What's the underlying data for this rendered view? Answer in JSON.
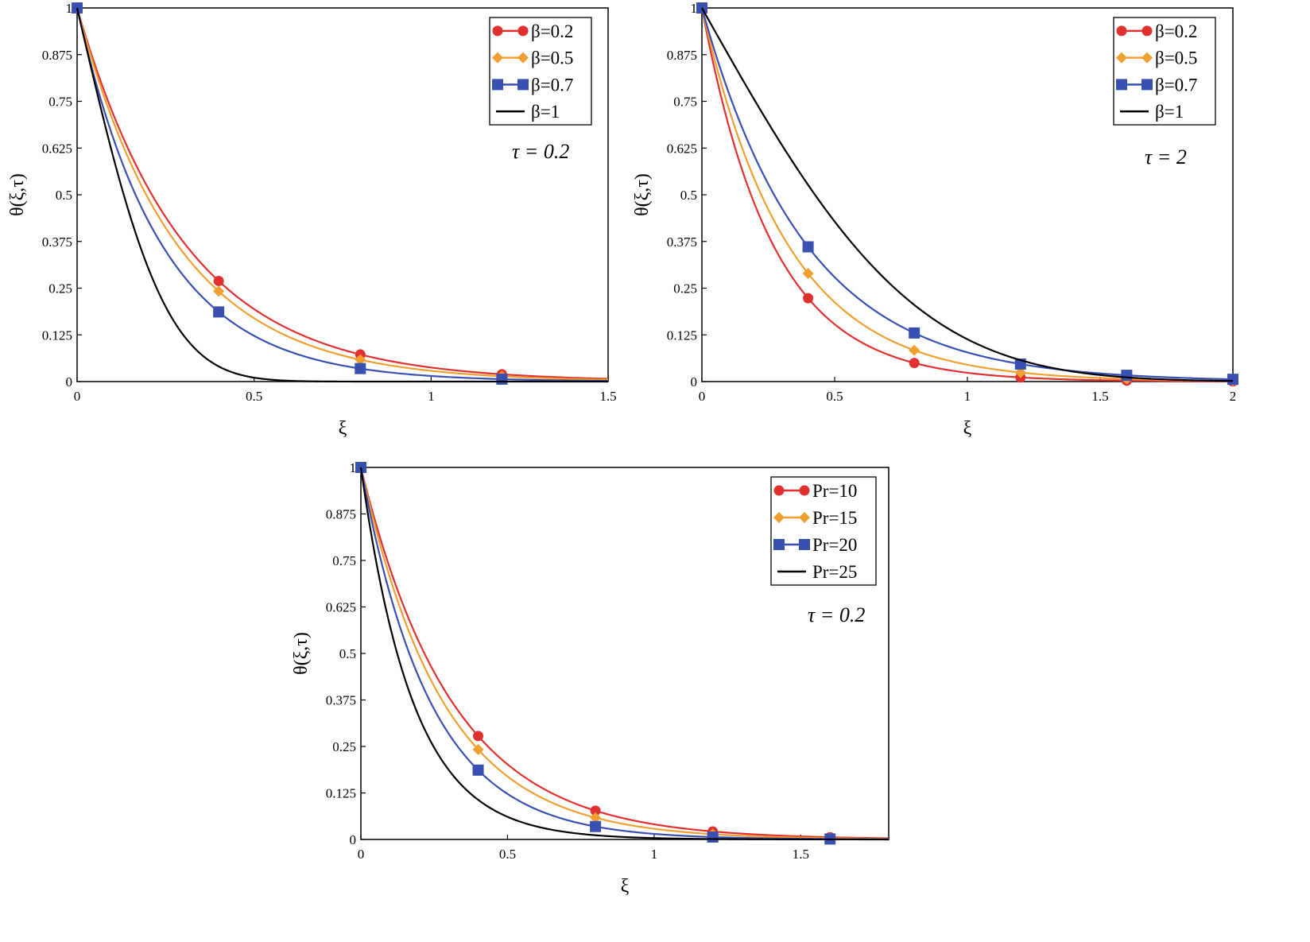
{
  "colors": {
    "red": "#e03030",
    "orange": "#f0a030",
    "blue": "#3a50b0",
    "black": "#000000"
  },
  "chart_data": [
    {
      "type": "line",
      "xlabel": "ξ",
      "ylabel": "θ(ξ,τ)",
      "xlim": [
        0,
        1.5
      ],
      "ylim": [
        0,
        1
      ],
      "x_ticks": [
        "0",
        "0.5",
        "1",
        "1.5"
      ],
      "y_ticks": [
        "0",
        "0.125",
        "0.25",
        "0.375",
        "0.5",
        "0.625",
        "0.75",
        "0.875",
        "1"
      ],
      "annotation": "τ = 0.2",
      "legend_position": "top-right",
      "series": [
        {
          "name": "β=0.2",
          "color": "red",
          "marker": "circle",
          "decay": 3.28,
          "markers_x": [
            0,
            0.4,
            0.8,
            1.2
          ]
        },
        {
          "name": "β=0.5",
          "color": "orange",
          "marker": "diamond",
          "decay": 3.55,
          "markers_x": [
            0,
            0.4,
            0.8,
            1.2
          ]
        },
        {
          "name": "β=0.7",
          "color": "blue",
          "marker": "square",
          "decay": 4.2,
          "markers_x": [
            0,
            0.4,
            0.8,
            1.2
          ]
        },
        {
          "name": "β=1",
          "color": "black",
          "marker": "none",
          "erfc_a": 3.62
        }
      ]
    },
    {
      "type": "line",
      "xlabel": "ξ",
      "ylabel": "θ(ξ,τ)",
      "xlim": [
        0,
        2
      ],
      "ylim": [
        0,
        1
      ],
      "x_ticks": [
        "0",
        "0.5",
        "1",
        "1.5",
        "2"
      ],
      "y_ticks": [
        "0",
        "0.125",
        "0.25",
        "0.375",
        "0.5",
        "0.625",
        "0.75",
        "0.875",
        "1"
      ],
      "annotation": "τ = 2",
      "legend_position": "top-right",
      "series": [
        {
          "name": "β=0.2",
          "color": "red",
          "marker": "circle",
          "decay": 3.75,
          "markers_x": [
            0,
            0.4,
            0.8,
            1.2,
            1.6,
            2
          ]
        },
        {
          "name": "β=0.5",
          "color": "orange",
          "marker": "diamond",
          "decay": 3.1,
          "markers_x": [
            0,
            0.4,
            0.8,
            1.2,
            1.6,
            2
          ]
        },
        {
          "name": "β=0.7",
          "color": "blue",
          "marker": "square",
          "decay": 2.55,
          "markers_x": [
            0,
            0.4,
            0.8,
            1.2,
            1.6,
            2
          ]
        },
        {
          "name": "β=1",
          "color": "black",
          "marker": "none",
          "erfc_a": 1.12
        }
      ]
    },
    {
      "type": "line",
      "xlabel": "ξ",
      "ylabel": "θ(ξ,τ)",
      "xlim": [
        0,
        1.8
      ],
      "ylim": [
        0,
        1
      ],
      "x_ticks": [
        "0",
        "0.5",
        "1",
        "1.5"
      ],
      "y_ticks": [
        "0",
        "0.125",
        "0.25",
        "0.375",
        "0.5",
        "0.625",
        "0.75",
        "0.875",
        "1"
      ],
      "annotation": "τ = 0.2",
      "legend_position": "top-right",
      "series": [
        {
          "name": "Pr=10",
          "color": "red",
          "marker": "circle",
          "decay": 3.2,
          "markers_x": [
            0,
            0.4,
            0.8,
            1.2,
            1.6
          ]
        },
        {
          "name": "Pr=15",
          "color": "orange",
          "marker": "diamond",
          "decay": 3.55,
          "markers_x": [
            0,
            0.4,
            0.8,
            1.2,
            1.6
          ]
        },
        {
          "name": "Pr=20",
          "color": "blue",
          "marker": "square",
          "decay": 4.2,
          "markers_x": [
            0,
            0.4,
            0.8,
            1.2,
            1.6
          ]
        },
        {
          "name": "Pr=25",
          "color": "black",
          "marker": "none",
          "decay": 5.6
        }
      ]
    }
  ]
}
